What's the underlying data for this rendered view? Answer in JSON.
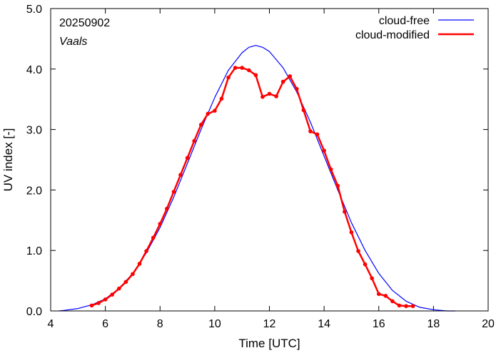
{
  "chart_data": {
    "type": "line",
    "title": "",
    "annotations": {
      "date": "20250902",
      "location": "Vaals"
    },
    "xlabel": "Time  [UTC]",
    "ylabel": "UV index  [-]",
    "xlim": [
      4,
      20
    ],
    "ylim": [
      0,
      5.0
    ],
    "xticks": [
      4,
      6,
      8,
      10,
      12,
      14,
      16,
      18,
      20
    ],
    "xtick_labels": [
      "4",
      "6",
      "8",
      "10",
      "12",
      "14",
      "16",
      "18",
      "20"
    ],
    "yticks": [
      0,
      1,
      2,
      3,
      4,
      5
    ],
    "ytick_labels": [
      "0.0",
      "1.0",
      "2.0",
      "3.0",
      "4.0",
      "5.0"
    ],
    "grid": false,
    "legend_position": "top-right",
    "series": [
      {
        "name": "cloud-free",
        "color": "#0000ff",
        "markers": false,
        "x": [
          4.3,
          4.5,
          5.0,
          5.5,
          6.0,
          6.5,
          7.0,
          7.5,
          8.0,
          8.5,
          9.0,
          9.5,
          10.0,
          10.5,
          11.0,
          11.25,
          11.5,
          11.75,
          12.0,
          12.5,
          13.0,
          13.5,
          14.0,
          14.5,
          15.0,
          15.5,
          16.0,
          16.5,
          17.0,
          17.5,
          18.0,
          18.5,
          18.8
        ],
        "y": [
          0.0,
          0.01,
          0.04,
          0.1,
          0.2,
          0.37,
          0.62,
          0.96,
          1.38,
          1.88,
          2.44,
          3.0,
          3.53,
          3.98,
          4.27,
          4.36,
          4.39,
          4.36,
          4.29,
          4.02,
          3.62,
          3.12,
          2.56,
          2.0,
          1.46,
          1.0,
          0.62,
          0.34,
          0.16,
          0.06,
          0.02,
          0.0,
          0.0
        ]
      },
      {
        "name": "cloud-modified",
        "color": "#ff0000",
        "markers": true,
        "x": [
          5.5,
          5.75,
          6.0,
          6.25,
          6.5,
          6.75,
          7.0,
          7.25,
          7.5,
          7.75,
          8.0,
          8.25,
          8.5,
          8.75,
          9.0,
          9.25,
          9.5,
          9.75,
          10.0,
          10.25,
          10.5,
          10.75,
          11.0,
          11.25,
          11.5,
          11.75,
          12.0,
          12.25,
          12.5,
          12.75,
          13.0,
          13.25,
          13.5,
          13.75,
          14.0,
          14.25,
          14.5,
          14.75,
          15.0,
          15.25,
          15.5,
          15.75,
          16.0,
          16.25,
          16.5,
          16.75,
          17.0,
          17.25
        ],
        "y": [
          0.09,
          0.13,
          0.19,
          0.27,
          0.37,
          0.48,
          0.61,
          0.78,
          0.99,
          1.21,
          1.44,
          1.69,
          1.97,
          2.25,
          2.53,
          2.81,
          3.08,
          3.26,
          3.31,
          3.51,
          3.86,
          4.02,
          4.02,
          3.98,
          3.9,
          3.54,
          3.59,
          3.55,
          3.79,
          3.88,
          3.67,
          3.32,
          2.97,
          2.92,
          2.65,
          2.34,
          2.07,
          1.64,
          1.3,
          0.99,
          0.77,
          0.54,
          0.28,
          0.25,
          0.16,
          0.09,
          0.08,
          0.08
        ]
      }
    ]
  }
}
